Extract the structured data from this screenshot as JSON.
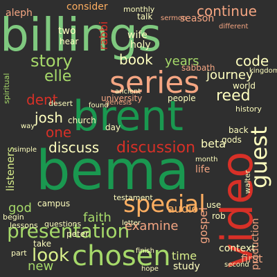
{
  "words": {
    "billings": "billings",
    "bema": "bema",
    "brent": "brent",
    "video": "video",
    "series": "series",
    "chosen": "chosen",
    "special": "special",
    "presentation": "presentation",
    "discussion": "discussion",
    "guest": "guest",
    "story": "story",
    "elle": "elle",
    "dent": "dent",
    "josh": "josh",
    "one": "one",
    "discuss": "discuss",
    "book": "book",
    "look": "look",
    "faith": "faith",
    "god": "god",
    "listeners": "listeners",
    "reed": "reed",
    "code": "code",
    "journey": "journey",
    "continue": "continue",
    "consider": "consider",
    "years": "years",
    "examine": "examine",
    "audio": "audio",
    "testament": "testament",
    "gospel": "gospel",
    "production": "production",
    "new": "new",
    "time": "time",
    "study": "study",
    "context": "context",
    "first": "first",
    "two": "two",
    "hear": "hear",
    "aleph": "aleph",
    "rabbi": "rabbi",
    "season": "season",
    "talk": "talk",
    "wife": "wife",
    "holy": "holy",
    "sabbath": "sabbath",
    "church": "church",
    "world": "world",
    "history": "history",
    "beta": "beta",
    "university": "university",
    "people": "people",
    "day": "day",
    "life": "life",
    "month": "month",
    "campus": "campus",
    "letter": "letter",
    "peter": "peter",
    "take": "take",
    "part": "part",
    "questions": "questions",
    "lessons": "lessons",
    "begin": "begin",
    "walter": "walter",
    "rob": "rob",
    "use": "use",
    "back": "back",
    "gods": "gods",
    "sermon": "sermon",
    "different": "different",
    "monthly": "monthly",
    "desert": "desert",
    "spiritual": "spiritual",
    "genesis": "genesis",
    "ancient": "ancient",
    "finish": "finish",
    "second": "second",
    "hope": "hope",
    "way": "way",
    "kingdom": "kingdom",
    "simple": "simple",
    "found": "found"
  }
}
